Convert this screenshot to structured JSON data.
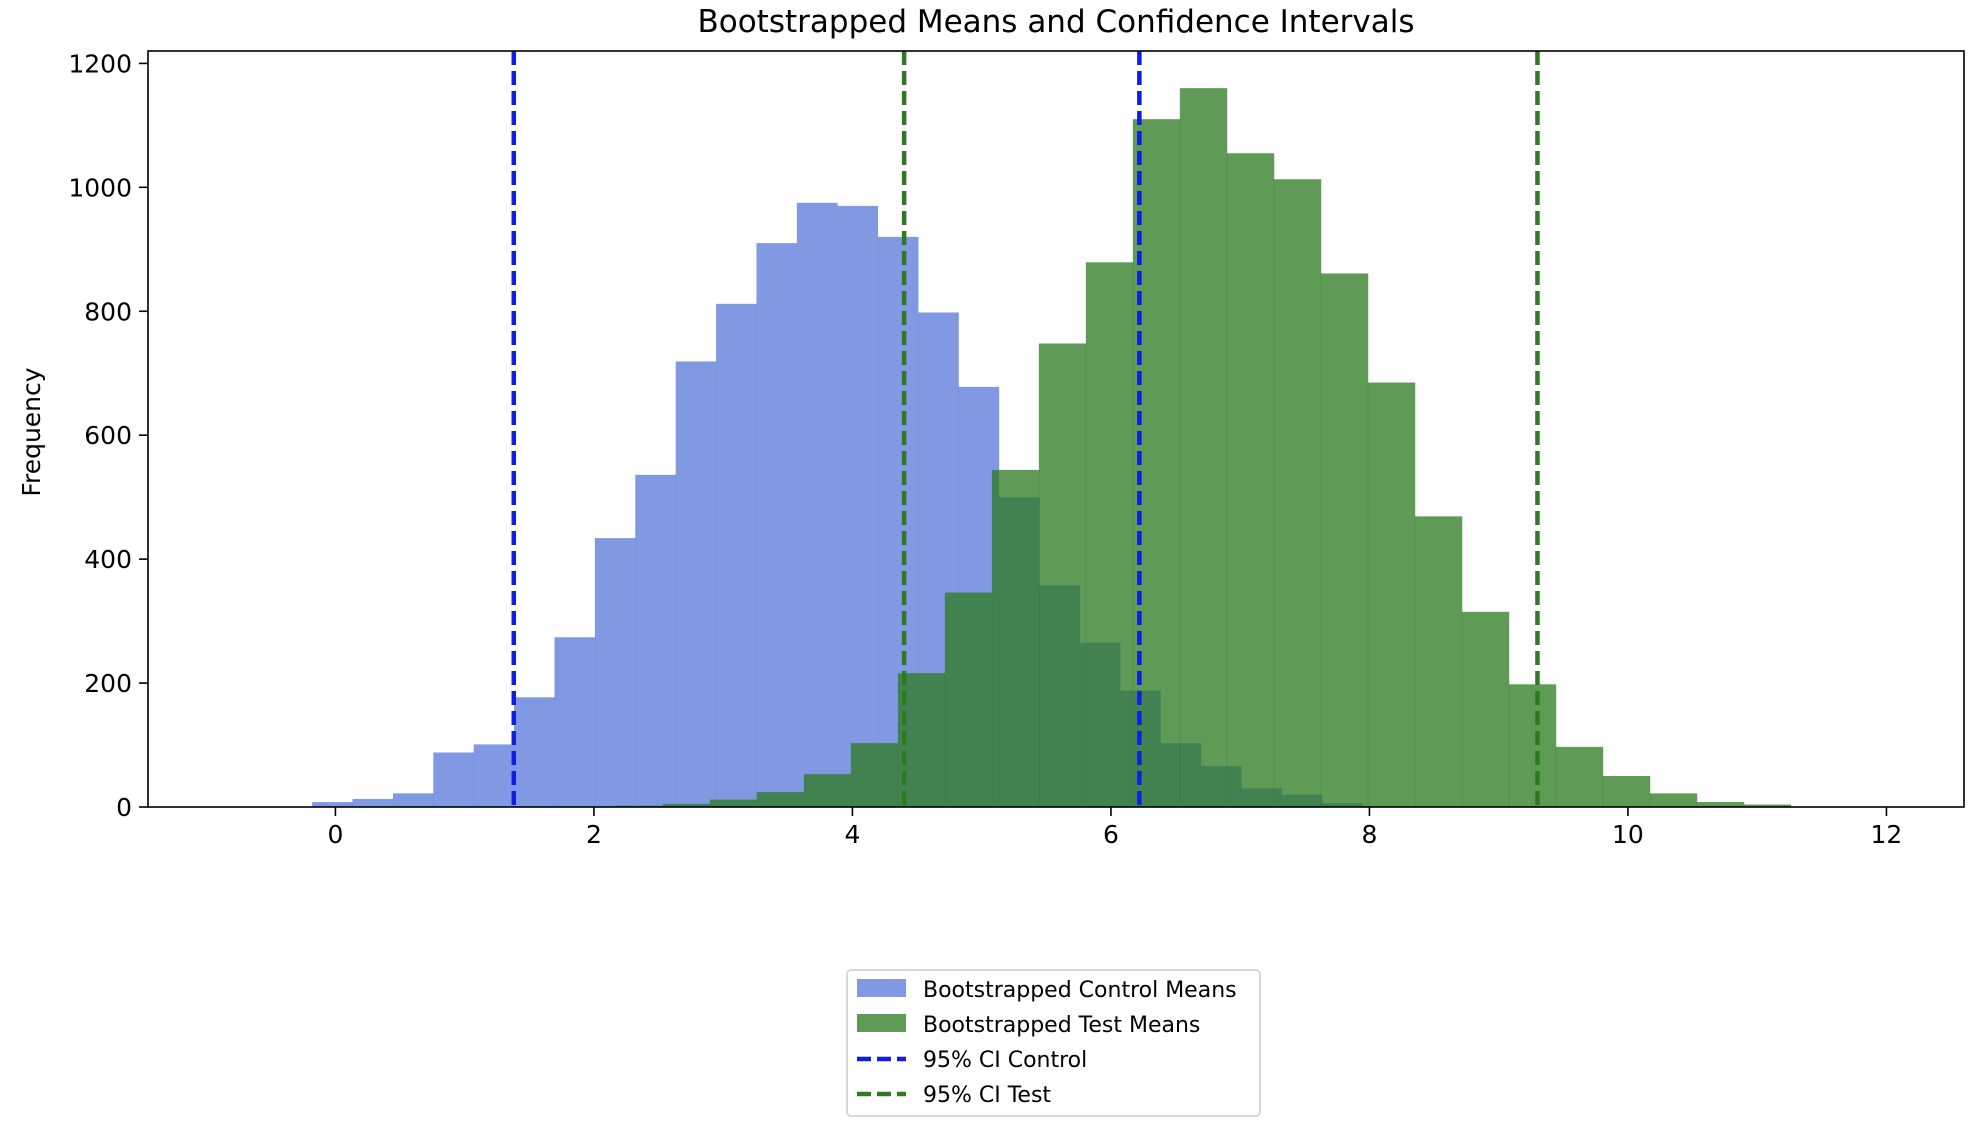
{
  "chart_data": {
    "type": "bar",
    "title": "Bootstrapped Means and Confidence Intervals",
    "xlabel": "",
    "ylabel": "Frequency",
    "xlim": [
      -1.45,
      12.6
    ],
    "ylim": [
      0,
      1220
    ],
    "x_ticks": [
      0,
      2,
      4,
      6,
      8,
      10,
      12
    ],
    "y_ticks": [
      0,
      200,
      400,
      600,
      800,
      1000,
      1200
    ],
    "grid": false,
    "legend_position": "bottom-center",
    "series": [
      {
        "name": "Bootstrapped Control Means",
        "color": "#6a87dd",
        "opacity": 0.85,
        "bin_start": -0.18,
        "bin_width": 0.3125,
        "values": [
          8,
          13,
          22,
          88,
          101,
          177,
          274,
          434,
          536,
          719,
          812,
          910,
          975,
          970,
          920,
          798,
          678,
          500,
          358,
          265,
          188,
          103,
          66,
          30,
          20,
          6
        ]
      },
      {
        "name": "Bootstrapped Test Means",
        "color": "#2e7a22",
        "opacity": 0.76,
        "bin_start": 2.17,
        "bin_width": 0.3636,
        "values": [
          2,
          5,
          12,
          24,
          53,
          103,
          216,
          346,
          544,
          748,
          879,
          1110,
          1160,
          1055,
          1013,
          861,
          685,
          469,
          315,
          198,
          97,
          50,
          22,
          8,
          4
        ]
      }
    ],
    "vlines": [
      {
        "name": "95% CI Control",
        "x": 1.38,
        "color": "#0f1ee6"
      },
      {
        "name": "95% CI Control",
        "x": 6.22,
        "color": "#0f1ee6"
      },
      {
        "name": "95% CI Test",
        "x": 4.4,
        "color": "#2e7a22"
      },
      {
        "name": "95% CI Test",
        "x": 9.3,
        "color": "#2e7a22"
      }
    ],
    "legend": [
      {
        "label": "Bootstrapped Control Means",
        "kind": "patch",
        "color": "#6a87dd",
        "opacity": 0.85
      },
      {
        "label": "Bootstrapped Test Means",
        "kind": "patch",
        "color": "#2e7a22",
        "opacity": 0.76
      },
      {
        "label": "95% CI Control",
        "kind": "dash",
        "color": "#0f1ee6"
      },
      {
        "label": "95% CI Test",
        "kind": "dash",
        "color": "#2e7a22"
      }
    ]
  }
}
